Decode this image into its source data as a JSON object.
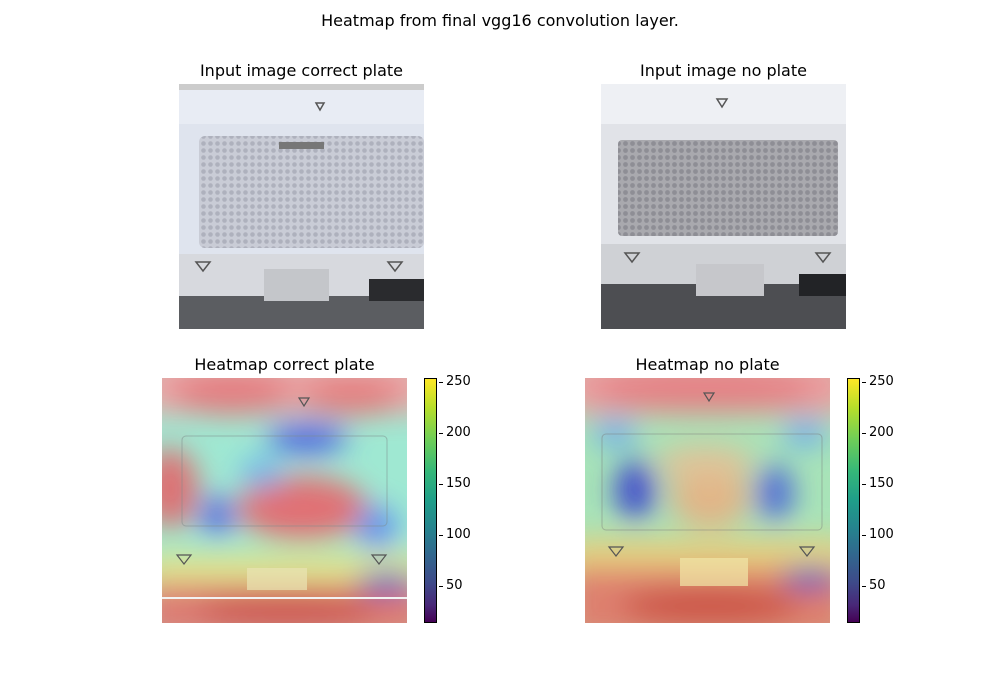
{
  "figure": {
    "title": "Heatmap from final vgg16 convolution layer."
  },
  "chart_data": [
    {
      "type": "image",
      "title": "Input image correct plate",
      "content": "photo of instrument plate holder with a well plate inserted"
    },
    {
      "type": "image",
      "title": "Input image no plate",
      "content": "photo of instrument plate holder without a plate"
    },
    {
      "type": "heatmap",
      "title": "Heatmap correct plate",
      "colormap": "viridis",
      "colorbar": {
        "range": [
          15,
          255
        ],
        "ticks": [
          50,
          100,
          150,
          200,
          250
        ]
      }
    },
    {
      "type": "heatmap",
      "title": "Heatmap no plate",
      "colormap": "viridis",
      "colorbar": {
        "range": [
          15,
          255
        ],
        "ticks": [
          50,
          100,
          150,
          200,
          250
        ]
      }
    }
  ],
  "colors": {
    "hot": "#e76a6f",
    "cold": "#2222cc",
    "viridis_top": "#fde725",
    "viridis_bottom": "#440154"
  }
}
